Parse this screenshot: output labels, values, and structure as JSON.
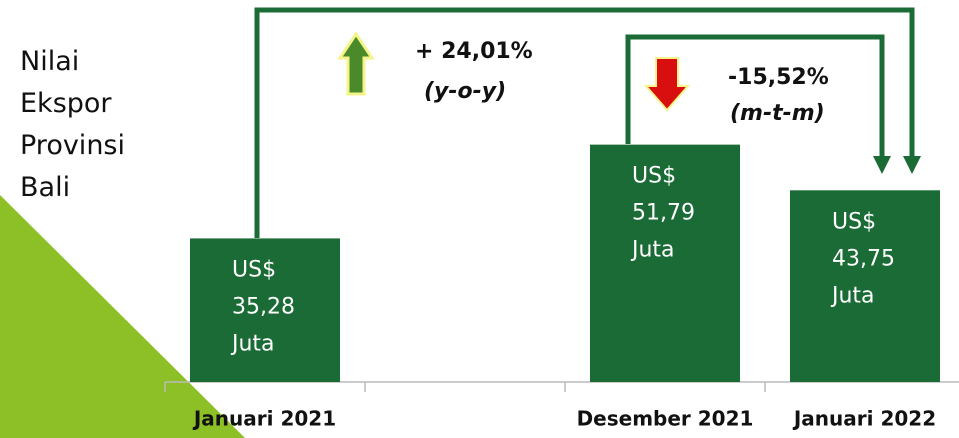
{
  "chart_data": {
    "type": "bar",
    "title": "Nilai Ekspor Provinsi Bali",
    "categories": [
      "Januari 2021",
      null,
      "Desember 2021",
      "Januari 2022"
    ],
    "values": [
      35.28,
      null,
      51.79,
      43.75
    ],
    "value_labels": [
      "US$\n35,28\nJuta",
      null,
      "US$\n51,79\nJuta",
      "US$\n43,75\nJuta"
    ],
    "color": "#1a6b35",
    "ylim": [
      10,
      60
    ],
    "annotations": [
      "+ 24,01%",
      "(y-o-y)",
      "-15,52%",
      "(m-t-m)"
    ]
  }
}
